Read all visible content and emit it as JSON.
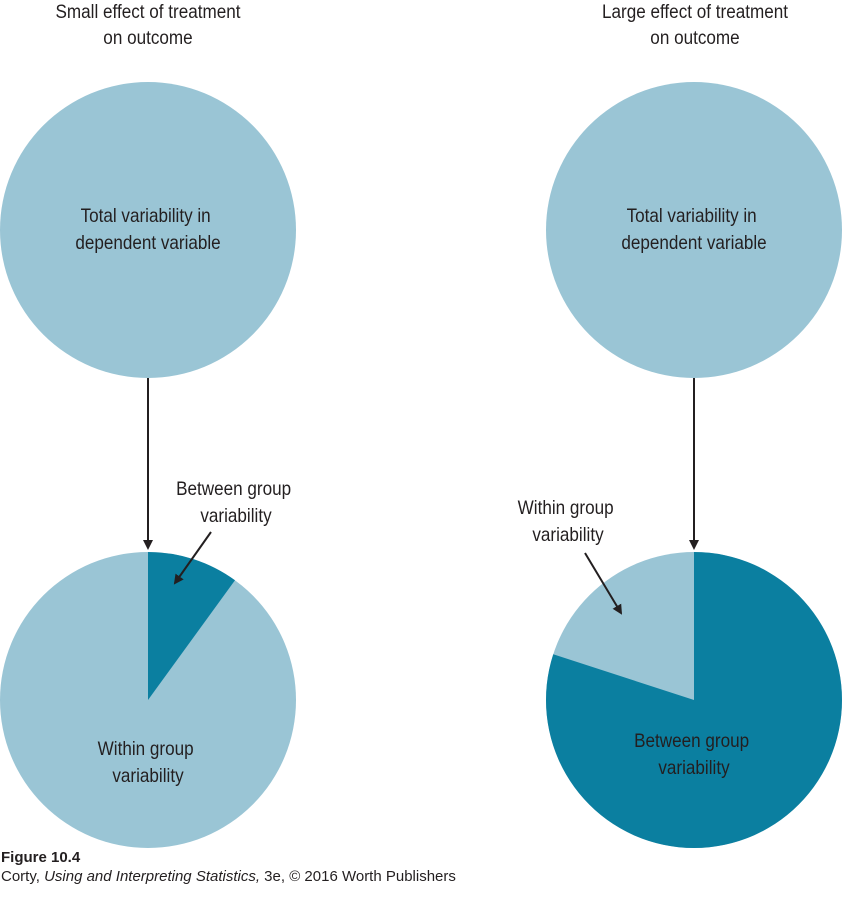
{
  "colors": {
    "light": "#9ac5d5",
    "dark": "#0b7fa0",
    "ink": "#231f20"
  },
  "panels": [
    {
      "title": [
        "Small effect of treatment",
        "on outcome"
      ],
      "total_label": [
        "Total variability in",
        "dependent variable"
      ],
      "between_share": 0.1,
      "between_label": [
        "Between group",
        "variability"
      ],
      "within_label": [
        "Within group",
        "variability"
      ]
    },
    {
      "title": [
        "Large effect of treatment",
        "on outcome"
      ],
      "total_label": [
        "Total variability in",
        "dependent variable"
      ],
      "between_share": 0.8,
      "between_label": [
        "Between group",
        "variability"
      ],
      "within_label": [
        "Within group",
        "variability"
      ]
    }
  ],
  "caption": {
    "figure_number": "Figure 10.4",
    "author": "Corty, ",
    "book_title": "Using and Interpreting Statistics,",
    "edition_publisher": " 3e, © 2016 Worth Publishers"
  }
}
